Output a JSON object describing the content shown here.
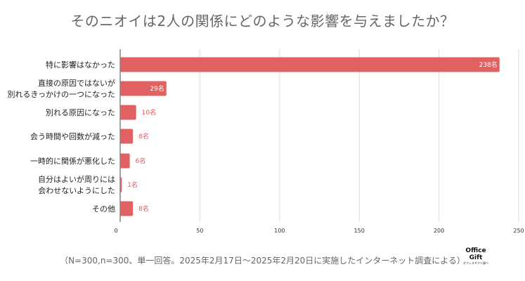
{
  "chart_data": {
    "type": "bar",
    "orientation": "horizontal",
    "title": "そのニオイは2人の関係にどのような影響を与えましたか？",
    "categories": [
      [
        "特に影響はなかった"
      ],
      [
        "直接の原因ではないが",
        "別れるきっかけの一つになった"
      ],
      [
        "別れる原因になった"
      ],
      [
        "会う時間や回数が減った"
      ],
      [
        "一時的に関係が悪化した"
      ],
      [
        "自分はよいが周りには",
        "会わせないようにした"
      ],
      [
        "その他"
      ]
    ],
    "values": [
      238,
      29,
      10,
      8,
      6,
      1,
      8
    ],
    "value_labels": [
      "238名",
      "29名",
      "10名",
      "8名",
      "6名",
      "1名",
      "8名"
    ],
    "xlim": [
      0,
      250
    ],
    "xticks": [
      0,
      50,
      100,
      150,
      200,
      250
    ],
    "grid": true,
    "bar_color": "#e06162",
    "gridline_color": "#dddddd"
  },
  "footnote": "（N=300,n=300、単一回答。2025年2月17日〜2025年2月20日に実施したインターネット調査による）",
  "logo": {
    "line1": "Office",
    "line2": "Gift",
    "line3": "オフィスギフト調べ"
  }
}
